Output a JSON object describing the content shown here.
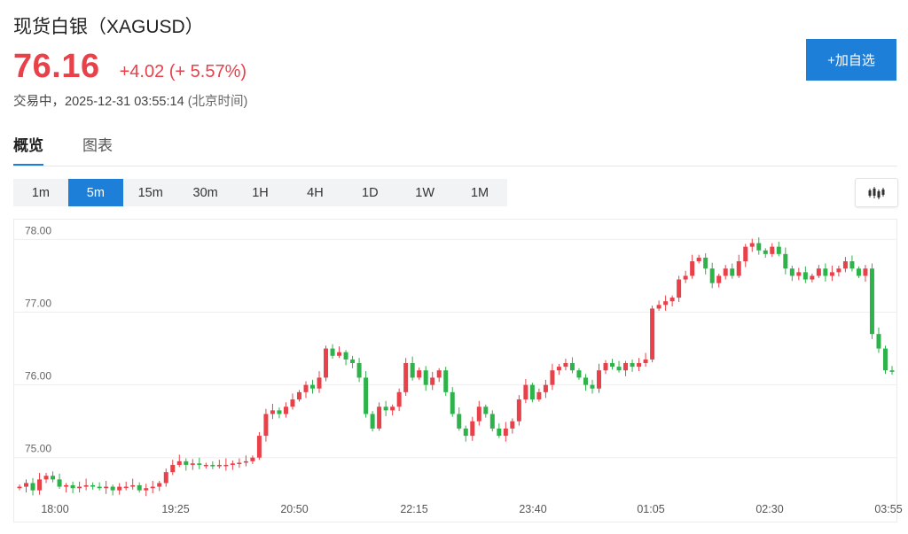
{
  "header": {
    "title": "现货白银（XAGUSD）",
    "price": "76.16",
    "change": "+4.02 (+ 5.57%)",
    "status": "交易中，2025-12-31 03:55:14",
    "timezone": "(北京时间)",
    "add_button": "+加自选"
  },
  "colors": {
    "up": "#e8414a",
    "down": "#2db34a",
    "accent": "#1e7fd9"
  },
  "tabs": [
    {
      "label": "概览",
      "active": true
    },
    {
      "label": "图表",
      "active": false
    }
  ],
  "intervals": [
    {
      "label": "1m",
      "active": false
    },
    {
      "label": "5m",
      "active": true
    },
    {
      "label": "15m",
      "active": false
    },
    {
      "label": "30m",
      "active": false
    },
    {
      "label": "1H",
      "active": false
    },
    {
      "label": "4H",
      "active": false
    },
    {
      "label": "1D",
      "active": false
    },
    {
      "label": "1W",
      "active": false
    },
    {
      "label": "1M",
      "active": false
    }
  ],
  "chart_type_icon": "candlestick-icon",
  "chart_data": {
    "type": "candlestick",
    "interval": "5m",
    "ylim": [
      74.4,
      78.2
    ],
    "yticks": [
      "78.00",
      "77.00",
      "76.00",
      "75.00"
    ],
    "ytick_values": [
      78,
      77,
      76,
      75
    ],
    "xticks": [
      "18:00",
      "19:25",
      "20:50",
      "22:15",
      "23:40",
      "01:05",
      "02:30",
      "03:55"
    ],
    "grid": true,
    "candles_approx_close": [
      74.6,
      74.65,
      74.55,
      74.7,
      74.75,
      74.7,
      74.6,
      74.62,
      74.58,
      74.6,
      74.62,
      74.6,
      74.58,
      74.6,
      74.55,
      74.6,
      74.6,
      74.62,
      74.55,
      74.58,
      74.6,
      74.65,
      74.8,
      74.9,
      74.95,
      74.9,
      74.92,
      74.9,
      74.9,
      74.88,
      74.9,
      74.9,
      74.92,
      74.93,
      74.95,
      75.0,
      75.3,
      75.6,
      75.65,
      75.6,
      75.7,
      75.8,
      75.9,
      76.0,
      75.95,
      76.1,
      76.5,
      76.4,
      76.45,
      76.35,
      76.3,
      76.1,
      75.6,
      75.4,
      75.7,
      75.65,
      75.7,
      75.9,
      76.3,
      76.1,
      76.2,
      76.0,
      76.1,
      76.2,
      75.9,
      75.6,
      75.4,
      75.3,
      75.5,
      75.7,
      75.6,
      75.4,
      75.3,
      75.4,
      75.5,
      75.8,
      76.0,
      75.8,
      75.9,
      76.0,
      76.2,
      76.25,
      76.3,
      76.2,
      76.1,
      76.0,
      75.95,
      76.2,
      76.3,
      76.25,
      76.2,
      76.3,
      76.25,
      76.3,
      76.35,
      77.05,
      77.1,
      77.15,
      77.2,
      77.45,
      77.5,
      77.7,
      77.75,
      77.6,
      77.4,
      77.5,
      77.6,
      77.5,
      77.7,
      77.9,
      77.95,
      77.85,
      77.8,
      77.9,
      77.8,
      77.6,
      77.5,
      77.55,
      77.45,
      77.5,
      77.6,
      77.5,
      77.55,
      77.6,
      77.7,
      77.6,
      77.5,
      77.6,
      76.7,
      76.5,
      76.2,
      76.18
    ]
  }
}
